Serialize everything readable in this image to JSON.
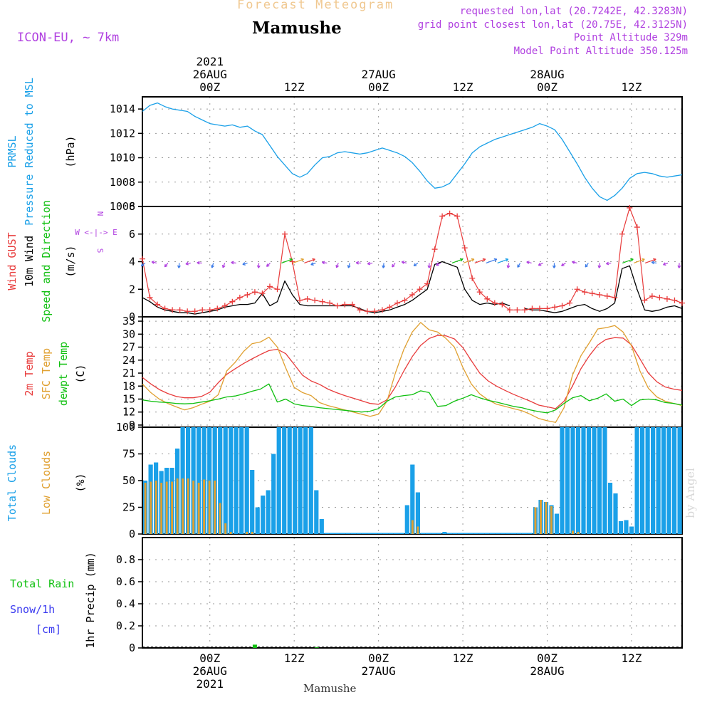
{
  "header": {
    "title": "Forecast Meteogram",
    "location": "Mamushe",
    "model": "ICON-EU, ~ 7km",
    "requested": "requested lon,lat (20.7242E, 42.3283N)",
    "grid_point": "grid point closest lon,lat (20.75E, 42.3125N)",
    "point_altitude": "Point Altitude 329m",
    "model_altitude": "Model Point Altitude 350.125m",
    "watermark": "by Angel",
    "footer_location": "Mamushe"
  },
  "colors": {
    "blue": "#1aa0e8",
    "red": "#e83c3c",
    "orange": "#e0a030",
    "green": "#10c010",
    "black": "#000000",
    "purple": "#b040e0",
    "snow": "#3a3af0",
    "grid": "#999999"
  },
  "time_axis": {
    "start_hour": -12,
    "end_hour": 84,
    "top_labels": [
      {
        "hour": 0,
        "lines": [
          "2021",
          "26AUG",
          "00Z"
        ]
      },
      {
        "hour": 15,
        "lines": [
          "12Z"
        ]
      },
      {
        "hour": 30,
        "lines": [
          "27AUG",
          "00Z"
        ]
      },
      {
        "hour": 45,
        "lines": [
          "12Z"
        ]
      },
      {
        "hour": 60,
        "lines": [
          "28AUG",
          "00Z"
        ]
      },
      {
        "hour": 75,
        "lines": [
          "12Z"
        ]
      }
    ],
    "bottom_labels": [
      {
        "hour": 0,
        "lines": [
          "00Z",
          "26AUG",
          "2021"
        ]
      },
      {
        "hour": 15,
        "lines": [
          "12Z"
        ]
      },
      {
        "hour": 30,
        "lines": [
          "00Z",
          "27AUG"
        ]
      },
      {
        "hour": 45,
        "lines": [
          "12Z"
        ]
      },
      {
        "hour": 60,
        "lines": [
          "00Z",
          "28AUG"
        ]
      },
      {
        "hour": 75,
        "lines": [
          "12Z"
        ]
      }
    ]
  },
  "chart_data": [
    {
      "type": "line",
      "id": "pressure",
      "title": "PRMSL Pressure Reduced to MSL",
      "ylabel_lines": [
        "PRMSL",
        "Pressure Reduced to MSL"
      ],
      "unit": "(hPa)",
      "ylim": [
        1006,
        1015
      ],
      "yticks": [
        1006,
        1008,
        1010,
        1012,
        1014
      ],
      "series": [
        {
          "name": "PRMSL",
          "color": "blue",
          "values": [
            1013.8,
            1014.3,
            1014.5,
            1014.2,
            1014.0,
            1013.9,
            1013.8,
            1013.4,
            1013.1,
            1012.8,
            1012.7,
            1012.6,
            1012.7,
            1012.5,
            1012.6,
            1012.2,
            1011.9,
            1011.0,
            1010.1,
            1009.4,
            1008.7,
            1008.4,
            1008.7,
            1009.4,
            1010.0,
            1010.1,
            1010.4,
            1010.5,
            1010.4,
            1010.3,
            1010.4,
            1010.6,
            1010.8,
            1010.6,
            1010.4,
            1010.1,
            1009.6,
            1008.9,
            1008.1,
            1007.5,
            1007.6,
            1007.9,
            1008.7,
            1009.5,
            1010.4,
            1010.9,
            1011.2,
            1011.5,
            1011.7,
            1011.9,
            1012.1,
            1012.3,
            1012.5,
            1012.8,
            1012.6,
            1012.3,
            1011.5,
            1010.5,
            1009.5,
            1008.4,
            1007.5,
            1006.8,
            1006.5,
            1006.9,
            1007.5,
            1008.3,
            1008.7,
            1008.8,
            1008.7,
            1008.5,
            1008.4,
            1008.5,
            1008.6
          ]
        }
      ]
    },
    {
      "type": "line",
      "id": "wind",
      "title": "Wind GUST / 10m Wind Speed and Direction",
      "ylabel_lines": [
        {
          "text": "Wind GUST",
          "color": "red"
        },
        {
          "text": "10m Wind",
          "color": "black"
        },
        {
          "text": "Speed and Direction",
          "color": "green"
        }
      ],
      "unit": "(m/s)",
      "compass": [
        "N",
        "W <-|-> E",
        "S"
      ],
      "ylim": [
        0,
        8
      ],
      "yticks": [
        0,
        2,
        4,
        6,
        8
      ],
      "series": [
        {
          "name": "Wind GUST",
          "color": "red",
          "marker": "+",
          "values": [
            4.2,
            1.4,
            0.9,
            0.6,
            0.5,
            0.5,
            0.4,
            0.4,
            0.5,
            0.5,
            0.6,
            0.8,
            1.1,
            1.4,
            1.6,
            1.8,
            1.7,
            2.2,
            2.0,
            6.0,
            4.0,
            1.2,
            1.3,
            1.2,
            1.1,
            1.0,
            0.8,
            0.9,
            0.9,
            0.5,
            0.4,
            0.4,
            0.5,
            0.7,
            1.0,
            1.2,
            1.6,
            2.0,
            2.4,
            4.9,
            7.3,
            7.5,
            7.3,
            5.0,
            2.8,
            1.8,
            1.3,
            1.0,
            0.9,
            0.5,
            0.5,
            0.5,
            0.6,
            0.6,
            0.6,
            0.7,
            0.8,
            1.0,
            2.0,
            1.8,
            1.7,
            1.6,
            1.5,
            1.4,
            6.0,
            7.9,
            6.5,
            1.2,
            1.5,
            1.4,
            1.3,
            1.2,
            1.0
          ]
        },
        {
          "name": "10m Wind",
          "color": "black",
          "values": [
            1.4,
            1.1,
            0.7,
            0.5,
            0.4,
            0.3,
            0.3,
            0.2,
            0.3,
            0.4,
            0.5,
            0.7,
            0.8,
            0.9,
            0.9,
            1.0,
            1.7,
            0.8,
            1.1,
            2.6,
            1.6,
            0.9,
            0.8,
            0.8,
            0.8,
            0.8,
            0.8,
            0.8,
            0.8,
            0.6,
            0.4,
            0.3,
            0.4,
            0.5,
            0.7,
            0.9,
            1.2,
            1.6,
            2.0,
            3.8,
            4.0,
            3.8,
            3.6,
            2.0,
            1.2,
            0.9,
            1.0,
            0.9,
            1.0,
            0.8,
            null,
            0.6,
            0.5,
            0.5,
            0.4,
            0.3,
            0.4,
            0.6,
            0.8,
            0.9,
            0.6,
            0.4,
            0.6,
            1.0,
            3.5,
            3.7,
            2.0,
            0.5,
            0.4,
            0.5,
            0.7,
            0.8,
            0.6
          ]
        },
        {
          "name": "Wind direction arrows",
          "color": "purple",
          "level": 3.9
        }
      ]
    },
    {
      "type": "line",
      "id": "temp",
      "title": "2m Temp / SFC Temp / dewpt Temp",
      "ylabel_lines": [
        {
          "text": "2m Temp",
          "color": "red"
        },
        {
          "text": "SFC Temp",
          "color": "orange"
        },
        {
          "text": "dewpt Temp",
          "color": "green"
        }
      ],
      "unit": "(C)",
      "ylim": [
        8.5,
        34
      ],
      "yticks": [
        9,
        12,
        15,
        18,
        21,
        24,
        27,
        30,
        33
      ],
      "series": [
        {
          "name": "2m Temp",
          "color": "red",
          "values": [
            20.0,
            18.5,
            17.2,
            16.3,
            15.6,
            15.3,
            15.3,
            15.6,
            16.6,
            18.8,
            20.7,
            22.0,
            23.2,
            24.3,
            25.3,
            26.2,
            26.5,
            25.5,
            23.0,
            20.5,
            19.2,
            18.4,
            17.3,
            16.5,
            15.8,
            15.2,
            14.6,
            14.0,
            13.8,
            14.8,
            17.8,
            21.5,
            24.8,
            27.4,
            29.0,
            29.7,
            29.6,
            28.9,
            26.9,
            23.9,
            21.0,
            19.2,
            18.0,
            17.0,
            16.1,
            15.3,
            14.5,
            13.6,
            13.2,
            12.8,
            14.5,
            18.0,
            22.0,
            25.0,
            27.5,
            28.8,
            29.2,
            29.1,
            27.5,
            24.3,
            21.0,
            19.0,
            17.8,
            17.3,
            17.0
          ]
        },
        {
          "name": "SFC Temp",
          "color": "orange",
          "values": [
            18.5,
            16.5,
            15.0,
            14.0,
            13.2,
            12.5,
            13.0,
            13.8,
            14.5,
            16.0,
            21.5,
            23.5,
            26.0,
            27.8,
            28.2,
            29.3,
            27.0,
            22.2,
            17.7,
            16.5,
            15.8,
            14.2,
            13.5,
            13.0,
            12.5,
            12.0,
            11.5,
            11.0,
            11.5,
            14.5,
            21.0,
            26.5,
            30.5,
            32.7,
            31.0,
            30.5,
            29.0,
            27.0,
            22.3,
            18.5,
            16.2,
            14.8,
            13.8,
            13.3,
            12.8,
            12.3,
            11.5,
            10.5,
            10.0,
            9.6,
            13.0,
            20.5,
            25.0,
            28.0,
            31.2,
            31.5,
            32.0,
            30.5,
            27.3,
            21.5,
            17.5,
            15.5,
            14.5,
            14.0,
            13.5
          ]
        },
        {
          "name": "dewpt Temp",
          "color": "green",
          "values": [
            14.8,
            14.5,
            14.3,
            14.2,
            14.0,
            13.9,
            14.0,
            14.3,
            14.6,
            15.0,
            15.5,
            15.7,
            16.2,
            16.8,
            17.3,
            18.5,
            14.3,
            15.0,
            13.9,
            13.5,
            13.3,
            13.0,
            12.8,
            12.6,
            12.4,
            12.2,
            12.0,
            12.2,
            12.8,
            14.5,
            15.5,
            15.8,
            16.0,
            16.9,
            16.5,
            13.3,
            13.5,
            14.5,
            15.2,
            16.0,
            15.3,
            14.7,
            14.3,
            13.8,
            13.3,
            13.0,
            12.5,
            12.1,
            11.8,
            12.5,
            14.0,
            15.3,
            15.8,
            14.6,
            15.2,
            16.2,
            14.5,
            15.0,
            13.5,
            14.8,
            15.0,
            14.8,
            14.2,
            14.0,
            13.6
          ]
        }
      ]
    },
    {
      "type": "bar",
      "id": "clouds",
      "title": "Total Clouds / Low Clouds",
      "ylabel_lines": [
        {
          "text": "Total Clouds",
          "color": "blue"
        },
        {
          "text": "Low Clouds",
          "color": "orange"
        }
      ],
      "unit": "(%)",
      "ylim": [
        0,
        100
      ],
      "yticks": [
        0,
        25,
        50,
        75,
        100
      ],
      "series": [
        {
          "name": "Total Clouds",
          "color": "blue",
          "values": [
            50,
            65,
            67,
            59,
            62,
            62,
            80,
            100,
            100,
            100,
            100,
            100,
            100,
            100,
            100,
            100,
            100,
            100,
            100,
            100,
            60,
            25,
            36,
            41,
            75,
            100,
            100,
            100,
            100,
            100,
            100,
            100,
            41,
            14,
            0,
            0,
            0,
            0,
            0,
            0,
            0,
            0,
            0,
            0,
            0,
            0,
            0,
            0,
            0,
            27,
            65,
            39,
            0,
            0,
            0,
            0,
            2,
            0,
            0,
            0,
            0,
            0,
            0,
            0,
            0,
            0,
            0,
            0,
            0,
            0,
            0,
            0,
            0,
            25,
            32,
            30,
            27,
            19,
            100,
            100,
            100,
            100,
            100,
            100,
            100,
            100,
            100,
            48,
            38,
            12,
            13,
            7,
            100,
            100,
            100,
            100,
            100,
            100,
            100,
            100,
            100
          ]
        },
        {
          "name": "Low Clouds",
          "color": "orange",
          "values": [
            48,
            49,
            50,
            48,
            49,
            49,
            52,
            52,
            52,
            50,
            48,
            51,
            50,
            50,
            29,
            10,
            2,
            0,
            0,
            2,
            2,
            0,
            0,
            0,
            0,
            0,
            0,
            0,
            0,
            0,
            0,
            0,
            0,
            0,
            0,
            0,
            0,
            0,
            0,
            0,
            0,
            0,
            0,
            0,
            0,
            0,
            0,
            0,
            0,
            0,
            13,
            7,
            0,
            0,
            0,
            0,
            0,
            0,
            0,
            0,
            0,
            0,
            0,
            0,
            0,
            0,
            0,
            0,
            0,
            0,
            0,
            0,
            0,
            25,
            32,
            30,
            26,
            0,
            0,
            0,
            3,
            2,
            0,
            0,
            0,
            0,
            0,
            0,
            0,
            0,
            0,
            0,
            0,
            0,
            0,
            0,
            0,
            0,
            0,
            0,
            0,
            0,
            0
          ]
        }
      ]
    },
    {
      "type": "bar",
      "id": "precip",
      "title": "1hr Precip",
      "ylabel_lines": [
        {
          "text": "Total  Rain",
          "color": "green"
        },
        {
          "text": "Snow/1h",
          "color": "snow"
        },
        {
          "text": "[cm]",
          "color": "snow"
        }
      ],
      "unit": "1hr Precip (mm)",
      "ylim": [
        0,
        1.0
      ],
      "yticks": [
        "0",
        "0.2",
        "0.4",
        "0.6",
        "0.8"
      ],
      "series": [
        {
          "name": "Total Rain",
          "color": "green",
          "points": [
            {
              "hour": 8,
              "value": 0.03
            },
            {
              "hour": 19,
              "value": 0.005
            }
          ]
        }
      ]
    }
  ]
}
